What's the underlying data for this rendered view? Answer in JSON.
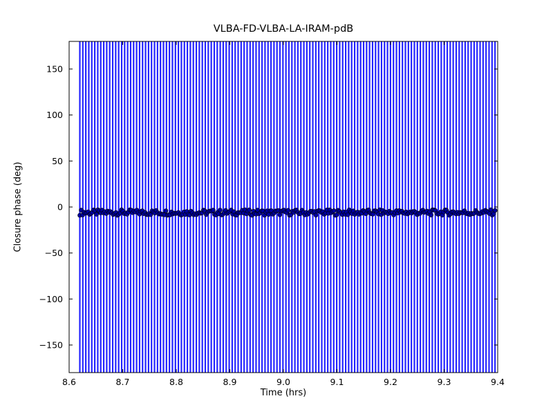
{
  "figure": {
    "background_color": "#ffffff",
    "axes_edge_color": "#000000"
  },
  "chart_data": {
    "type": "scatter",
    "title": "VLBA-FD-VLBA-LA-IRAM-pdB",
    "xlabel": "Time (hrs)",
    "ylabel": "Closure phase (deg)",
    "xlim": [
      8.6,
      9.4
    ],
    "ylim": [
      -180,
      180
    ],
    "grid": false,
    "legend_position": "none",
    "xticks": [
      {
        "value": 8.6,
        "label": "8.6"
      },
      {
        "value": 8.7,
        "label": "8.7"
      },
      {
        "value": 8.8,
        "label": "8.8"
      },
      {
        "value": 8.9,
        "label": "8.9"
      },
      {
        "value": 9.0,
        "label": "9.0"
      },
      {
        "value": 9.1,
        "label": "9.1"
      },
      {
        "value": 9.2,
        "label": "9.2"
      },
      {
        "value": 9.3,
        "label": "9.3"
      },
      {
        "value": 9.4,
        "label": "9.4"
      }
    ],
    "yticks": [
      {
        "value": -150,
        "label": "−150"
      },
      {
        "value": -100,
        "label": "−100"
      },
      {
        "value": -50,
        "label": "−50"
      },
      {
        "value": 0,
        "label": "0"
      },
      {
        "value": 50,
        "label": "50"
      },
      {
        "value": 100,
        "label": "100"
      },
      {
        "value": 150,
        "label": "150"
      }
    ],
    "series": [
      {
        "name": "closure-phase",
        "style": "errorbar-scatter",
        "marker": "circle",
        "marker_color": "#0000a0",
        "marker_edge_color": "#000000",
        "errorbar_color": "#2424ff",
        "x_start": 8.62,
        "x_end": 9.395,
        "n_errorbars": 140,
        "n_points": 300,
        "y_mean": -6,
        "y_scatter": 3,
        "y_error_span": "full axis range (error bars clipped at ±180 deg)"
      }
    ],
    "summary": "Dense, continuously sampled closure-phase time series holding approximately constant at about −6 deg from 8.62 to 9.395 hrs; every sample carries an error bar spanning the entire ±180 deg plot range, filling the axes with vertical blue stripes."
  }
}
